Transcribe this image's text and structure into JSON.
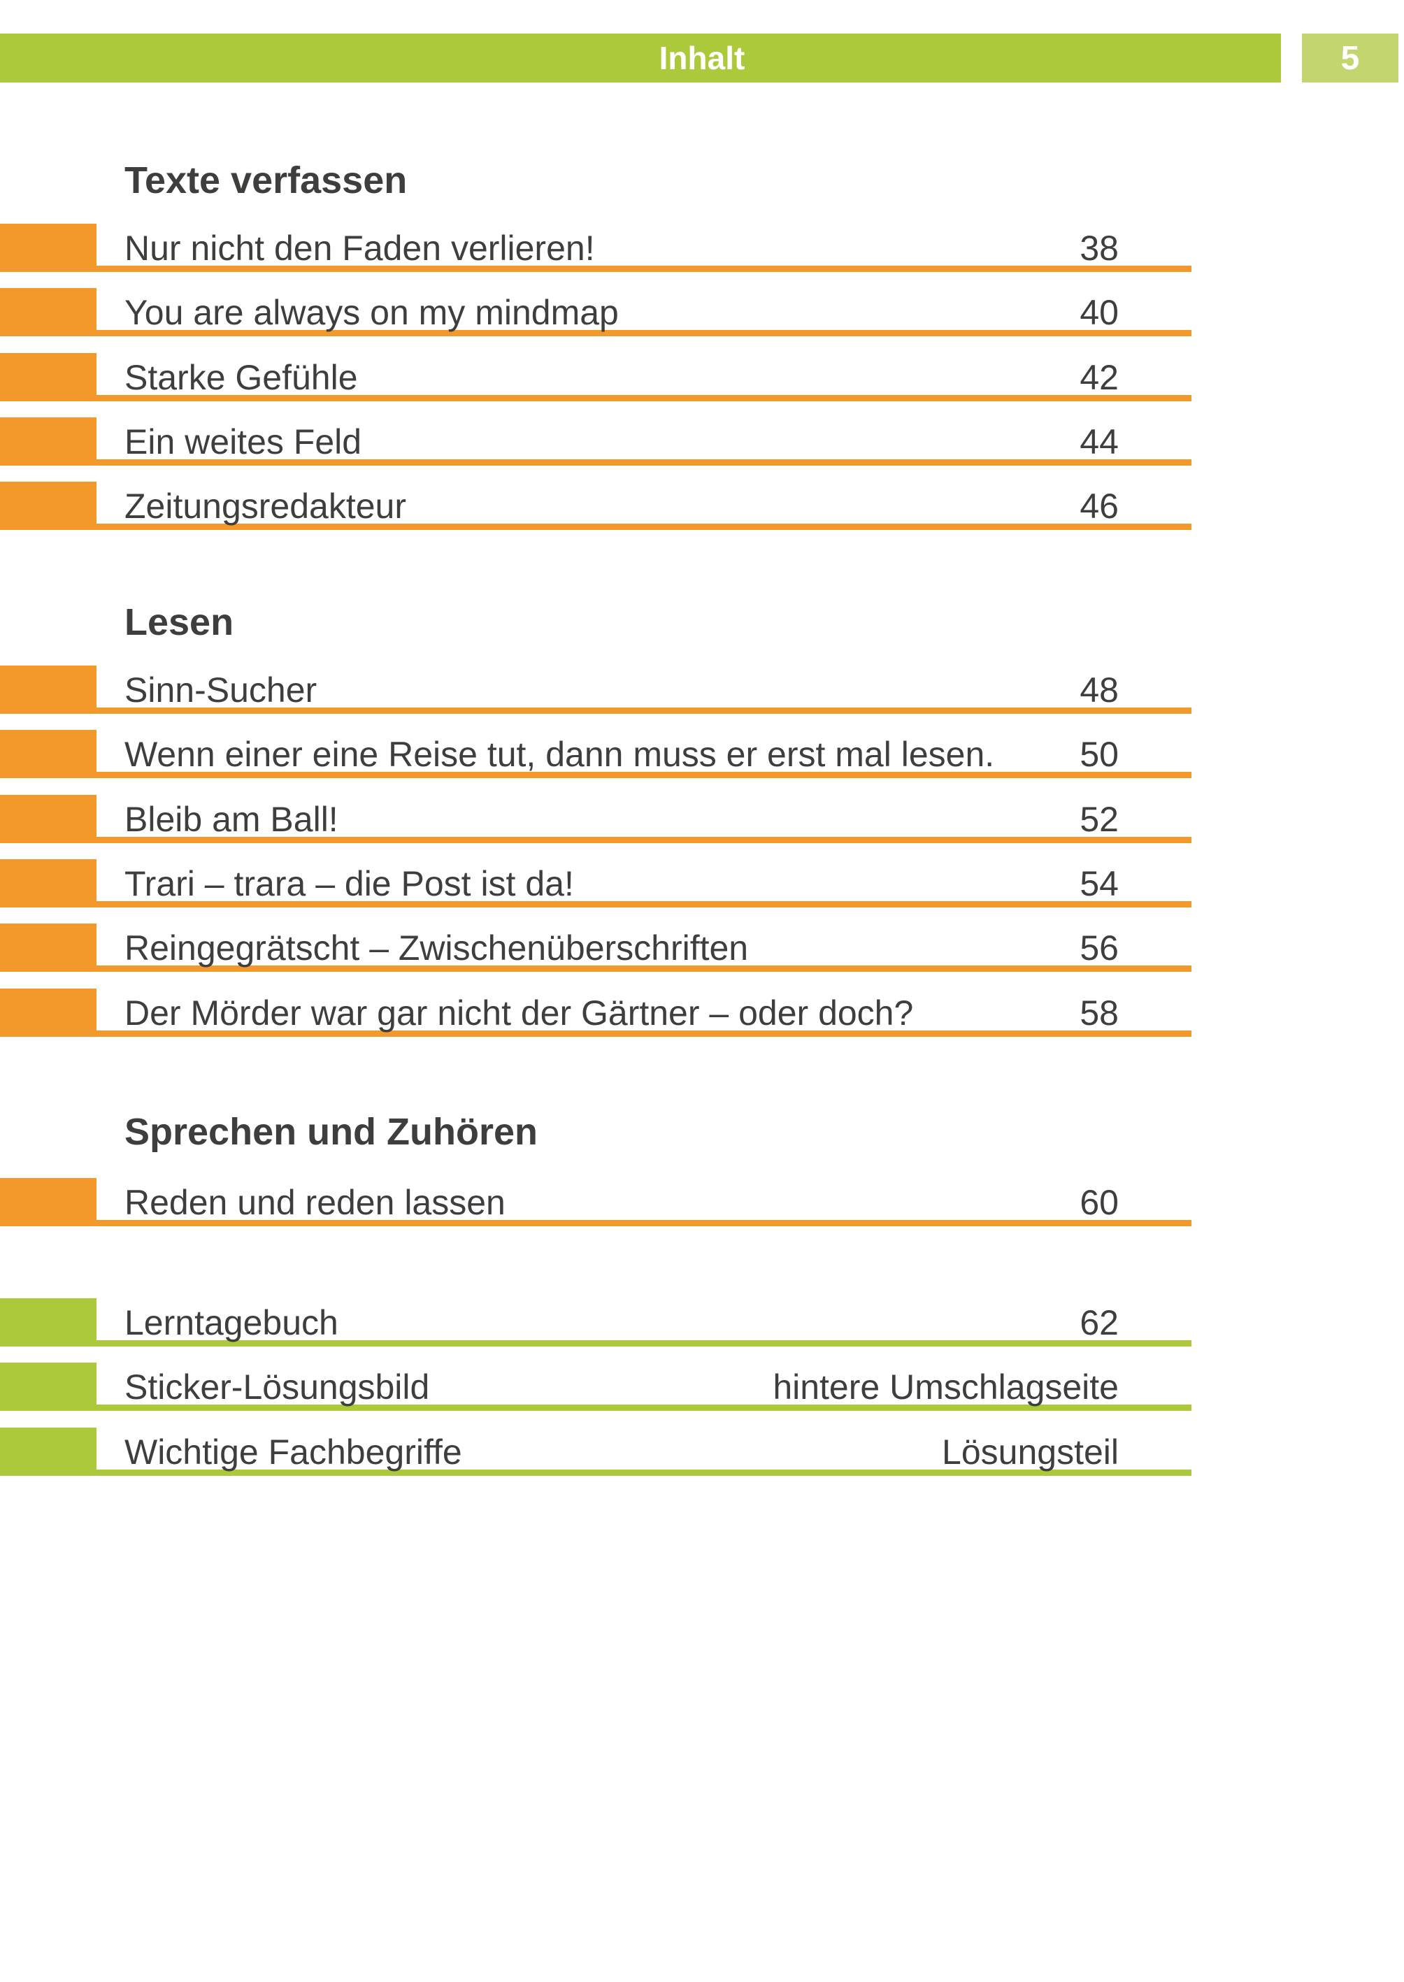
{
  "header": {
    "title": "Inhalt",
    "page_number": "5"
  },
  "colors": {
    "orange": "#F3982A",
    "green": "#ACC93C",
    "badge_green": "#C3D56F",
    "text": "#3E3E3D"
  },
  "sections": [
    {
      "id": "texte-verfassen",
      "heading": "Texte verfassen",
      "accent": "orange",
      "entries": [
        {
          "title": "Nur nicht den Faden verlieren!",
          "page": "38"
        },
        {
          "title": "You are always on my mindmap",
          "page": "40"
        },
        {
          "title": "Starke Gefühle",
          "page": "42"
        },
        {
          "title": "Ein weites Feld",
          "page": "44"
        },
        {
          "title": "Zeitungsredakteur",
          "page": "46"
        }
      ]
    },
    {
      "id": "lesen",
      "heading": "Lesen",
      "accent": "orange",
      "entries": [
        {
          "title": "Sinn-Sucher",
          "page": "48"
        },
        {
          "title": "Wenn einer eine Reise tut, dann muss er erst mal lesen.",
          "page": "50"
        },
        {
          "title": "Bleib am Ball!",
          "page": "52"
        },
        {
          "title": "Trari – trara – die Post ist da!",
          "page": "54"
        },
        {
          "title": "Reingegrätscht – Zwischenüberschriften",
          "page": "56"
        },
        {
          "title": "Der Mörder war gar nicht der Gärtner – oder doch?",
          "page": "58"
        }
      ]
    },
    {
      "id": "sprechen-und-zuhoeren",
      "heading": "Sprechen und Zuhören",
      "accent": "orange",
      "entries": [
        {
          "title": "Reden und reden lassen",
          "page": "60"
        }
      ]
    },
    {
      "id": "anhang",
      "heading": "",
      "accent": "green",
      "entries": [
        {
          "title": "Lerntagebuch",
          "page": "62"
        },
        {
          "title": "Sticker-Lösungsbild",
          "page": "hintere Umschlagseite"
        },
        {
          "title": "Wichtige Fachbegriffe",
          "page": "Lösungsteil"
        }
      ]
    }
  ]
}
